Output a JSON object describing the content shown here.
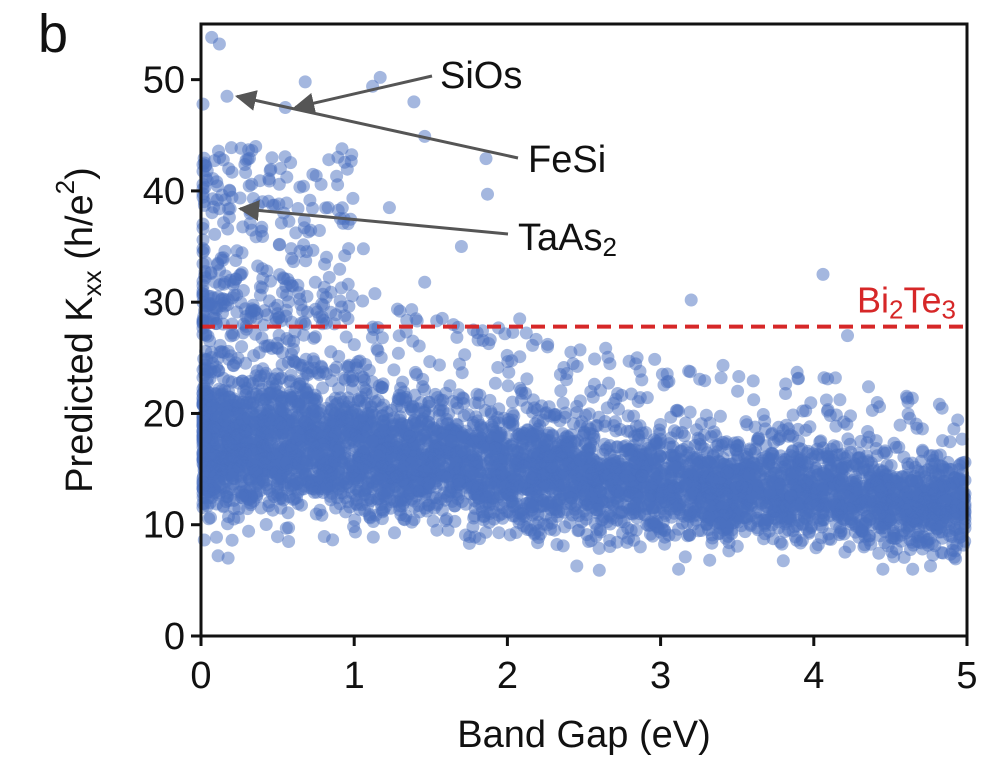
{
  "panel_label": "b",
  "colors": {
    "points": "#4a6fbf",
    "reference_line": "#d62728",
    "annotation_arrow": "#555555",
    "axes": "#111111"
  },
  "chart_data": {
    "type": "scatter",
    "xlabel": "Band Gap (eV)",
    "ylabel": {
      "main": "Predicted K",
      "sub": "xx",
      "unit_open": " (h/e",
      "sup": "2",
      "unit_close": ")"
    },
    "xlim": [
      0,
      5
    ],
    "ylim": [
      0,
      55
    ],
    "xticks": [
      0,
      1,
      2,
      3,
      4,
      5
    ],
    "yticks": [
      0,
      10,
      20,
      30,
      40,
      50
    ],
    "grid": false,
    "reference_line": {
      "y": 27.8,
      "style": "dashed",
      "label": {
        "parts": [
          "Bi",
          "2",
          "Te",
          "3"
        ]
      }
    },
    "annotations": [
      {
        "label": "SiOs",
        "x": 0.55,
        "y": 47.5
      },
      {
        "label": "FeSi",
        "x": 0.17,
        "y": 48.5
      },
      {
        "label": {
          "parts": [
            "TaAs",
            "2"
          ]
        },
        "x": 0.19,
        "y": 38.4
      }
    ],
    "notable_points": [
      {
        "x": 0.07,
        "y": 53.8
      },
      {
        "x": 0.12,
        "y": 53.2
      },
      {
        "x": 0.0,
        "y": 47.8
      },
      {
        "x": 0.17,
        "y": 48.5
      },
      {
        "x": 0.55,
        "y": 47.5
      },
      {
        "x": 0.68,
        "y": 49.8
      },
      {
        "x": 1.12,
        "y": 49.4
      },
      {
        "x": 1.17,
        "y": 50.2
      },
      {
        "x": 1.39,
        "y": 48.0
      },
      {
        "x": 1.46,
        "y": 44.9
      },
      {
        "x": 1.86,
        "y": 42.9
      },
      {
        "x": 1.87,
        "y": 39.7
      },
      {
        "x": 1.7,
        "y": 35.0
      },
      {
        "x": 0.19,
        "y": 38.4
      },
      {
        "x": 0.83,
        "y": 38.5
      },
      {
        "x": 1.23,
        "y": 38.5
      },
      {
        "x": 1.06,
        "y": 34.8
      },
      {
        "x": 1.46,
        "y": 31.8
      },
      {
        "x": 2.08,
        "y": 28.5
      },
      {
        "x": 3.2,
        "y": 30.2
      },
      {
        "x": 4.06,
        "y": 32.5
      },
      {
        "x": 2.6,
        "y": 5.9
      },
      {
        "x": 4.22,
        "y": 27.0
      }
    ],
    "point_cloud": {
      "count": 5200,
      "main_band": [
        {
          "x": 0.0,
          "mean": 17.5,
          "spread": 5.2
        },
        {
          "x": 1.0,
          "mean": 17.0,
          "spread": 4.8
        },
        {
          "x": 2.0,
          "mean": 15.0,
          "spread": 4.2
        },
        {
          "x": 3.0,
          "mean": 13.5,
          "spread": 3.8
        },
        {
          "x": 4.0,
          "mean": 13.0,
          "spread": 3.6
        },
        {
          "x": 5.0,
          "mean": 11.5,
          "spread": 3.0
        }
      ],
      "min_y": 6.0,
      "upper_cluster": {
        "x_max": 1.0,
        "y_range": [
          28,
          44
        ]
      }
    }
  }
}
